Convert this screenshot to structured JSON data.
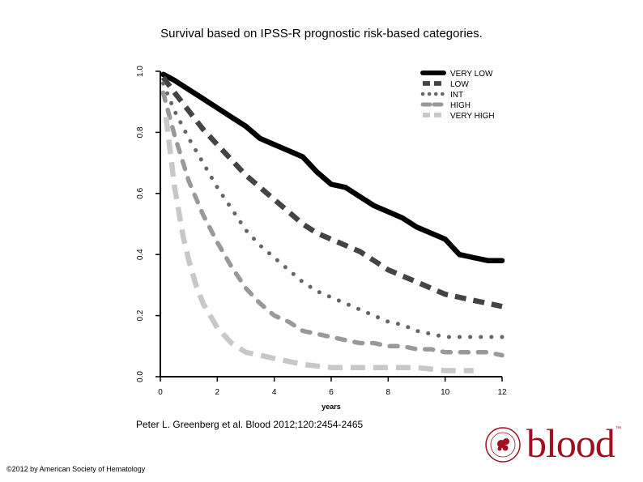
{
  "slide": {
    "title": "Survival based on IPSS-R prognostic risk-based categories.",
    "citation": "Peter L. Greenberg et al. Blood 2012;120:2454-2465",
    "copyright": "©2012 by American Society of Hematology",
    "logo_text": "blood",
    "logo_tm": "™",
    "seal_text": "AMERICAN SOCIETY OF HEMATOLOGY",
    "brand_color": "#a01020"
  },
  "chart_data": {
    "type": "line",
    "title": "",
    "xlabel": "years",
    "ylabel": "",
    "xlim": [
      0,
      12
    ],
    "ylim": [
      0,
      1
    ],
    "xticks": [
      0,
      2,
      4,
      6,
      8,
      10,
      12
    ],
    "yticks": [
      0.0,
      0.2,
      0.4,
      0.6,
      0.8,
      1.0
    ],
    "xtick_labels": [
      "0",
      "2",
      "4",
      "6",
      "8",
      "10",
      "12"
    ],
    "ytick_labels": [
      "0.0",
      "0.2",
      "0.4",
      "0.6",
      "0.8",
      "1.0"
    ],
    "grid": false,
    "legend_position": "top-right",
    "series": [
      {
        "name": "VERY LOW",
        "color": "#000000",
        "style": "solid",
        "x": [
          0.1,
          0.5,
          1,
          1.5,
          2,
          2.5,
          3,
          3.5,
          4,
          4.5,
          5,
          5.5,
          6,
          6.5,
          7,
          7.5,
          8,
          8.5,
          9,
          9.5,
          10,
          10.5,
          11,
          11.5,
          12
        ],
        "y": [
          0.99,
          0.97,
          0.94,
          0.91,
          0.88,
          0.85,
          0.82,
          0.78,
          0.76,
          0.74,
          0.72,
          0.67,
          0.63,
          0.62,
          0.59,
          0.56,
          0.54,
          0.52,
          0.49,
          0.47,
          0.45,
          0.4,
          0.39,
          0.38,
          0.38
        ]
      },
      {
        "name": "LOW",
        "color": "#444444",
        "style": "dashed",
        "x": [
          0.1,
          0.5,
          1,
          1.5,
          2,
          2.5,
          3,
          3.5,
          4,
          4.5,
          5,
          5.5,
          6,
          6.5,
          7,
          7.5,
          8,
          8.5,
          9,
          9.5,
          10,
          10.5,
          11,
          11.5,
          12
        ],
        "y": [
          0.98,
          0.93,
          0.87,
          0.81,
          0.76,
          0.71,
          0.66,
          0.62,
          0.58,
          0.54,
          0.5,
          0.47,
          0.45,
          0.43,
          0.41,
          0.38,
          0.35,
          0.33,
          0.31,
          0.29,
          0.27,
          0.26,
          0.25,
          0.24,
          0.23
        ]
      },
      {
        "name": "INT",
        "color": "#666666",
        "style": "dotted",
        "x": [
          0.1,
          0.5,
          1,
          1.5,
          2,
          2.5,
          3,
          3.5,
          4,
          4.5,
          5,
          5.5,
          6,
          6.5,
          7,
          7.5,
          8,
          8.5,
          9,
          9.5,
          10,
          10.5,
          11,
          11.5,
          12
        ],
        "y": [
          0.96,
          0.87,
          0.78,
          0.7,
          0.62,
          0.55,
          0.48,
          0.43,
          0.39,
          0.35,
          0.31,
          0.28,
          0.26,
          0.24,
          0.22,
          0.2,
          0.18,
          0.17,
          0.15,
          0.14,
          0.13,
          0.13,
          0.13,
          0.13,
          0.13
        ]
      },
      {
        "name": "HIGH",
        "color": "#999999",
        "style": "dashed",
        "x": [
          0.1,
          0.5,
          1,
          1.5,
          2,
          2.5,
          3,
          3.5,
          4,
          4.5,
          5,
          5.5,
          6,
          6.5,
          7,
          7.5,
          8,
          8.5,
          9,
          9.5,
          10,
          10.5,
          11,
          11.5,
          12
        ],
        "y": [
          0.93,
          0.79,
          0.64,
          0.53,
          0.44,
          0.36,
          0.29,
          0.24,
          0.2,
          0.18,
          0.15,
          0.14,
          0.13,
          0.12,
          0.11,
          0.11,
          0.1,
          0.1,
          0.09,
          0.09,
          0.08,
          0.08,
          0.08,
          0.08,
          0.07
        ]
      },
      {
        "name": "VERY HIGH",
        "color": "#c8c8c8",
        "style": "dashed",
        "x": [
          0.2,
          0.5,
          0.8,
          1,
          1.25,
          1.5,
          2,
          2.5,
          3,
          3.5,
          4,
          4.5,
          5,
          5.5,
          6,
          7,
          8,
          9,
          10,
          11
        ],
        "y": [
          0.85,
          0.62,
          0.46,
          0.38,
          0.3,
          0.24,
          0.16,
          0.11,
          0.08,
          0.07,
          0.06,
          0.05,
          0.04,
          0.035,
          0.03,
          0.03,
          0.03,
          0.03,
          0.02,
          0.02
        ]
      }
    ]
  }
}
